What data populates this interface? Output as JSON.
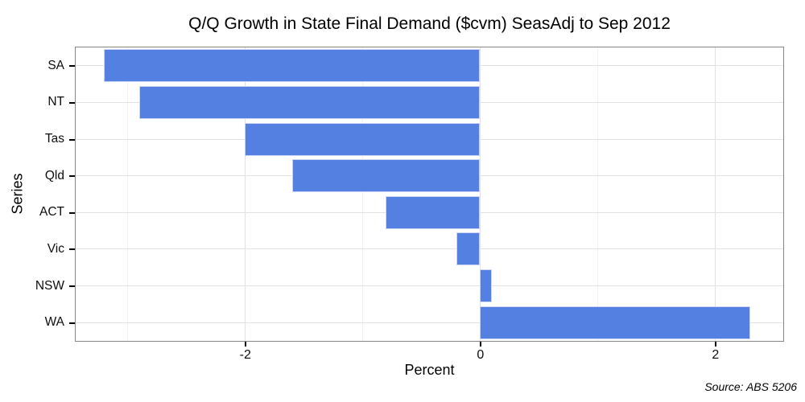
{
  "chart_data": {
    "type": "bar",
    "orientation": "horizontal",
    "title": "Q/Q Growth in State Final Demand ($cvm) SeasAdj to Sep 2012",
    "xlabel": "Percent",
    "ylabel": "Series",
    "categories": [
      "SA",
      "NT",
      "Tas",
      "Qld",
      "ACT",
      "Vic",
      "NSW",
      "WA"
    ],
    "values": [
      -3.2,
      -2.9,
      -2.0,
      -1.6,
      -0.8,
      -0.2,
      0.1,
      2.3
    ],
    "xlim": [
      -3.44,
      2.58
    ],
    "x_major_ticks": [
      -2,
      0,
      2
    ],
    "x_major_tick_labels": [
      "-2",
      "0",
      "2"
    ],
    "x_minor_gridlines": [
      -3,
      -1,
      1
    ],
    "grid": true,
    "legend": false,
    "bar_color": "#5380e1",
    "bar_border_color": "#ccd6f4",
    "major_grid_color": "#e2e2e2",
    "minor_grid_color": "#f1f1f1",
    "panel_border_color": "#878787",
    "source_note": "Source: ABS 5206"
  }
}
